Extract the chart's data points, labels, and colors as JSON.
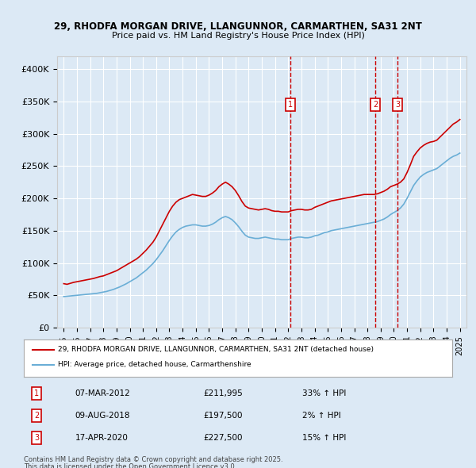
{
  "title1": "29, RHODFA MORGAN DRIVE, LLANGUNNOR, CARMARTHEN, SA31 2NT",
  "title2": "Price paid vs. HM Land Registry's House Price Index (HPI)",
  "bg_color": "#dce9f5",
  "plot_bg_color": "#dce9f5",
  "red_line_label": "29, RHODFA MORGAN DRIVE, LLANGUNNOR, CARMARTHEN, SA31 2NT (detached house)",
  "blue_line_label": "HPI: Average price, detached house, Carmarthenshire",
  "transactions": [
    {
      "num": 1,
      "date": "07-MAR-2012",
      "price": "£211,995",
      "hpi": "33% ↑ HPI",
      "x_year": 2012.18
    },
    {
      "num": 2,
      "date": "09-AUG-2018",
      "price": "£197,500",
      "hpi": "2% ↑ HPI",
      "x_year": 2018.6
    },
    {
      "num": 3,
      "date": "17-APR-2020",
      "price": "£227,500",
      "hpi": "15% ↑ HPI",
      "x_year": 2020.29
    }
  ],
  "footer1": "Contains HM Land Registry data © Crown copyright and database right 2025.",
  "footer2": "This data is licensed under the Open Government Licence v3.0.",
  "ylim": [
    0,
    420000
  ],
  "yticks": [
    0,
    50000,
    100000,
    150000,
    200000,
    250000,
    300000,
    350000,
    400000
  ],
  "xlim": [
    1994.5,
    2025.5
  ],
  "red_x": [
    1995.0,
    1995.25,
    1995.5,
    1995.75,
    1996.0,
    1996.25,
    1996.5,
    1996.75,
    1997.0,
    1997.25,
    1997.5,
    1997.75,
    1998.0,
    1998.25,
    1998.5,
    1998.75,
    1999.0,
    1999.25,
    1999.5,
    1999.75,
    2000.0,
    2000.25,
    2000.5,
    2000.75,
    2001.0,
    2001.25,
    2001.5,
    2001.75,
    2002.0,
    2002.25,
    2002.5,
    2002.75,
    2003.0,
    2003.25,
    2003.5,
    2003.75,
    2004.0,
    2004.25,
    2004.5,
    2004.75,
    2005.0,
    2005.25,
    2005.5,
    2005.75,
    2006.0,
    2006.25,
    2006.5,
    2006.75,
    2007.0,
    2007.25,
    2007.5,
    2007.75,
    2008.0,
    2008.25,
    2008.5,
    2008.75,
    2009.0,
    2009.25,
    2009.5,
    2009.75,
    2010.0,
    2010.25,
    2010.5,
    2010.75,
    2011.0,
    2011.25,
    2011.5,
    2011.75,
    2012.0,
    2012.25,
    2012.5,
    2012.75,
    2013.0,
    2013.25,
    2013.5,
    2013.75,
    2014.0,
    2014.25,
    2014.5,
    2014.75,
    2015.0,
    2015.25,
    2015.5,
    2015.75,
    2016.0,
    2016.25,
    2016.5,
    2016.75,
    2017.0,
    2017.25,
    2017.5,
    2017.75,
    2018.0,
    2018.25,
    2018.5,
    2018.75,
    2019.0,
    2019.25,
    2019.5,
    2019.75,
    2020.0,
    2020.25,
    2020.5,
    2020.75,
    2021.0,
    2021.25,
    2021.5,
    2021.75,
    2022.0,
    2022.25,
    2022.5,
    2022.75,
    2023.0,
    2023.25,
    2023.5,
    2023.75,
    2024.0,
    2024.25,
    2024.5,
    2024.75,
    2025.0
  ],
  "red_y": [
    68000,
    67000,
    68500,
    70000,
    71000,
    72000,
    73000,
    74000,
    75000,
    76000,
    77500,
    79000,
    80000,
    82000,
    84000,
    86000,
    88000,
    91000,
    94000,
    97000,
    100000,
    103000,
    106000,
    110000,
    115000,
    120000,
    126000,
    132000,
    140000,
    150000,
    160000,
    170000,
    180000,
    188000,
    194000,
    198000,
    200000,
    202000,
    204000,
    206000,
    205000,
    204000,
    203000,
    203000,
    205000,
    208000,
    212000,
    218000,
    222000,
    225000,
    222000,
    218000,
    212000,
    204000,
    195000,
    188000,
    185000,
    184000,
    183000,
    182000,
    183000,
    184000,
    183000,
    181000,
    180000,
    180000,
    179000,
    179000,
    179000,
    181000,
    182000,
    183000,
    183000,
    182000,
    182000,
    183000,
    186000,
    188000,
    190000,
    192000,
    194000,
    196000,
    197000,
    198000,
    199000,
    200000,
    201000,
    202000,
    203000,
    204000,
    205000,
    206000,
    206000,
    206000,
    206000,
    207000,
    209000,
    211000,
    214000,
    218000,
    220000,
    222000,
    225000,
    230000,
    240000,
    252000,
    265000,
    272000,
    278000,
    282000,
    285000,
    287000,
    288000,
    290000,
    295000,
    300000,
    305000,
    310000,
    315000,
    318000,
    322000
  ],
  "blue_x": [
    1995.0,
    1995.25,
    1995.5,
    1995.75,
    1996.0,
    1996.25,
    1996.5,
    1996.75,
    1997.0,
    1997.25,
    1997.5,
    1997.75,
    1998.0,
    1998.25,
    1998.5,
    1998.75,
    1999.0,
    1999.25,
    1999.5,
    1999.75,
    2000.0,
    2000.25,
    2000.5,
    2000.75,
    2001.0,
    2001.25,
    2001.5,
    2001.75,
    2002.0,
    2002.25,
    2002.5,
    2002.75,
    2003.0,
    2003.25,
    2003.5,
    2003.75,
    2004.0,
    2004.25,
    2004.5,
    2004.75,
    2005.0,
    2005.25,
    2005.5,
    2005.75,
    2006.0,
    2006.25,
    2006.5,
    2006.75,
    2007.0,
    2007.25,
    2007.5,
    2007.75,
    2008.0,
    2008.25,
    2008.5,
    2008.75,
    2009.0,
    2009.25,
    2009.5,
    2009.75,
    2010.0,
    2010.25,
    2010.5,
    2010.75,
    2011.0,
    2011.25,
    2011.5,
    2011.75,
    2012.0,
    2012.25,
    2012.5,
    2012.75,
    2013.0,
    2013.25,
    2013.5,
    2013.75,
    2014.0,
    2014.25,
    2014.5,
    2014.75,
    2015.0,
    2015.25,
    2015.5,
    2015.75,
    2016.0,
    2016.25,
    2016.5,
    2016.75,
    2017.0,
    2017.25,
    2017.5,
    2017.75,
    2018.0,
    2018.25,
    2018.5,
    2018.75,
    2019.0,
    2019.25,
    2019.5,
    2019.75,
    2020.0,
    2020.25,
    2020.5,
    2020.75,
    2021.0,
    2021.25,
    2021.5,
    2021.75,
    2022.0,
    2022.25,
    2022.5,
    2022.75,
    2023.0,
    2023.25,
    2023.5,
    2023.75,
    2024.0,
    2024.25,
    2024.5,
    2024.75,
    2025.0
  ],
  "blue_y": [
    48000,
    48500,
    49000,
    49500,
    50000,
    50500,
    51000,
    51500,
    52000,
    52500,
    53000,
    54000,
    55000,
    56000,
    57500,
    59000,
    61000,
    63000,
    65500,
    68000,
    71000,
    74000,
    77000,
    81000,
    85000,
    89000,
    94000,
    99000,
    105000,
    112000,
    119000,
    127000,
    135000,
    142000,
    148000,
    152000,
    155000,
    157000,
    158000,
    159000,
    159000,
    158000,
    157000,
    157000,
    158000,
    160000,
    163000,
    167000,
    170000,
    172000,
    170000,
    167000,
    162000,
    156000,
    149000,
    143000,
    140000,
    139000,
    138000,
    138000,
    139000,
    140000,
    139000,
    138000,
    137000,
    137000,
    136000,
    136000,
    136000,
    138000,
    139000,
    140000,
    140000,
    139000,
    139000,
    140000,
    142000,
    143000,
    145000,
    147000,
    148000,
    150000,
    151000,
    152000,
    153000,
    154000,
    155000,
    156000,
    157000,
    158000,
    159000,
    160000,
    161000,
    162000,
    163000,
    164000,
    166000,
    168000,
    171000,
    175000,
    178000,
    181000,
    185000,
    191000,
    200000,
    210000,
    220000,
    227000,
    233000,
    237000,
    240000,
    242000,
    244000,
    246000,
    250000,
    254000,
    258000,
    262000,
    265000,
    267000,
    270000
  ]
}
